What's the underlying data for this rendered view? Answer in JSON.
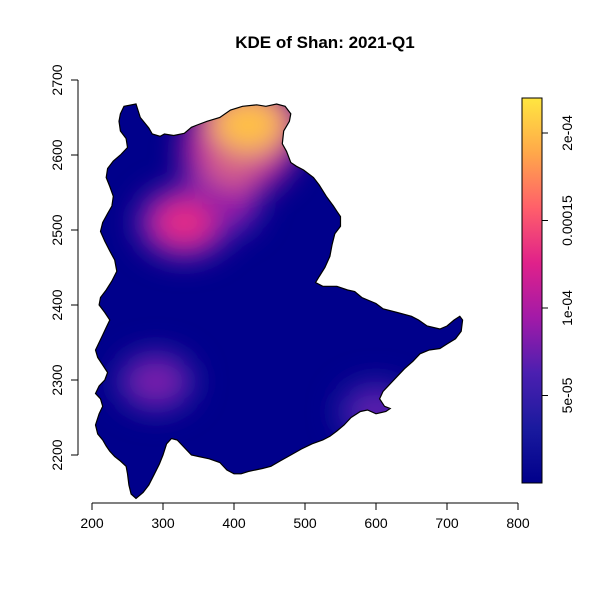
{
  "chart_data": {
    "type": "heatmap",
    "title": "KDE of Shan: 2021-Q1",
    "xlabel": "",
    "ylabel": "",
    "xlim": [
      200,
      800
    ],
    "ylim": [
      2140,
      2700
    ],
    "x_ticks": [
      "200",
      "300",
      "400",
      "500",
      "600",
      "700",
      "800"
    ],
    "y_ticks": [
      "2200",
      "2300",
      "2400",
      "2500",
      "2600",
      "2700"
    ],
    "grid": false,
    "colorbar": {
      "range": [
        0,
        0.00022
      ],
      "ticks": [
        "5e-05",
        "1e-04",
        "0.00015",
        "2e-04"
      ],
      "tick_values": [
        5e-05,
        0.0001,
        0.00015,
        0.0002
      ],
      "colors": [
        "#00008b",
        "#1a1a9e",
        "#4b1fb0",
        "#a21aa8",
        "#e0218a",
        "#ff5f6a",
        "#ffa84a",
        "#ffe640"
      ]
    },
    "hotspots": [
      {
        "x": 330,
        "y": 2510,
        "density": 0.00013
      },
      {
        "x": 375,
        "y": 2535,
        "density": 0.00011
      },
      {
        "x": 405,
        "y": 2605,
        "density": 0.00018
      },
      {
        "x": 420,
        "y": 2640,
        "density": 0.0002
      },
      {
        "x": 290,
        "y": 2298,
        "density": 8e-05
      },
      {
        "x": 600,
        "y": 2258,
        "density": 7e-05
      }
    ],
    "outline": [
      [
        245,
        2665
      ],
      [
        262,
        2668
      ],
      [
        268,
        2650
      ],
      [
        280,
        2636
      ],
      [
        285,
        2628
      ],
      [
        296,
        2625
      ],
      [
        302,
        2628
      ],
      [
        315,
        2626
      ],
      [
        330,
        2629
      ],
      [
        340,
        2637
      ],
      [
        348,
        2640
      ],
      [
        362,
        2645
      ],
      [
        380,
        2650
      ],
      [
        395,
        2660
      ],
      [
        412,
        2665
      ],
      [
        432,
        2667
      ],
      [
        445,
        2665
      ],
      [
        460,
        2668
      ],
      [
        472,
        2665
      ],
      [
        480,
        2655
      ],
      [
        478,
        2645
      ],
      [
        470,
        2632
      ],
      [
        468,
        2615
      ],
      [
        474,
        2605
      ],
      [
        480,
        2590
      ],
      [
        488,
        2585
      ],
      [
        498,
        2580
      ],
      [
        512,
        2570
      ],
      [
        520,
        2560
      ],
      [
        530,
        2545
      ],
      [
        540,
        2532
      ],
      [
        545,
        2525
      ],
      [
        550,
        2518
      ],
      [
        550,
        2505
      ],
      [
        542,
        2495
      ],
      [
        538,
        2480
      ],
      [
        535,
        2465
      ],
      [
        528,
        2450
      ],
      [
        520,
        2438
      ],
      [
        515,
        2430
      ],
      [
        525,
        2425
      ],
      [
        545,
        2425
      ],
      [
        560,
        2420
      ],
      [
        570,
        2418
      ],
      [
        580,
        2410
      ],
      [
        590,
        2406
      ],
      [
        600,
        2402
      ],
      [
        610,
        2395
      ],
      [
        630,
        2390
      ],
      [
        650,
        2385
      ],
      [
        660,
        2380
      ],
      [
        672,
        2372
      ],
      [
        690,
        2368
      ],
      [
        700,
        2372
      ],
      [
        710,
        2380
      ],
      [
        718,
        2385
      ],
      [
        722,
        2380
      ],
      [
        720,
        2365
      ],
      [
        712,
        2355
      ],
      [
        700,
        2348
      ],
      [
        690,
        2342
      ],
      [
        675,
        2340
      ],
      [
        662,
        2335
      ],
      [
        652,
        2325
      ],
      [
        640,
        2315
      ],
      [
        630,
        2305
      ],
      [
        620,
        2295
      ],
      [
        610,
        2285
      ],
      [
        605,
        2275
      ],
      [
        612,
        2265
      ],
      [
        620,
        2262
      ],
      [
        614,
        2258
      ],
      [
        600,
        2255
      ],
      [
        588,
        2260
      ],
      [
        578,
        2258
      ],
      [
        565,
        2250
      ],
      [
        555,
        2240
      ],
      [
        545,
        2232
      ],
      [
        535,
        2225
      ],
      [
        525,
        2220
      ],
      [
        510,
        2215
      ],
      [
        495,
        2208
      ],
      [
        480,
        2200
      ],
      [
        465,
        2192
      ],
      [
        452,
        2185
      ],
      [
        440,
        2182
      ],
      [
        430,
        2180
      ],
      [
        420,
        2178
      ],
      [
        410,
        2175
      ],
      [
        400,
        2175
      ],
      [
        390,
        2180
      ],
      [
        380,
        2190
      ],
      [
        365,
        2195
      ],
      [
        350,
        2198
      ],
      [
        340,
        2200
      ],
      [
        330,
        2210
      ],
      [
        320,
        2220
      ],
      [
        312,
        2222
      ],
      [
        305,
        2215
      ],
      [
        300,
        2200
      ],
      [
        295,
        2188
      ],
      [
        288,
        2175
      ],
      [
        280,
        2160
      ],
      [
        272,
        2150
      ],
      [
        262,
        2142
      ],
      [
        255,
        2148
      ],
      [
        252,
        2160
      ],
      [
        250,
        2175
      ],
      [
        248,
        2185
      ],
      [
        240,
        2192
      ],
      [
        232,
        2198
      ],
      [
        225,
        2205
      ],
      [
        220,
        2212
      ],
      [
        215,
        2220
      ],
      [
        208,
        2228
      ],
      [
        205,
        2240
      ],
      [
        210,
        2255
      ],
      [
        215,
        2265
      ],
      [
        212,
        2275
      ],
      [
        205,
        2282
      ],
      [
        210,
        2292
      ],
      [
        218,
        2300
      ],
      [
        222,
        2310
      ],
      [
        215,
        2320
      ],
      [
        208,
        2330
      ],
      [
        205,
        2340
      ],
      [
        210,
        2350
      ],
      [
        215,
        2360
      ],
      [
        220,
        2370
      ],
      [
        225,
        2380
      ],
      [
        218,
        2390
      ],
      [
        210,
        2400
      ],
      [
        212,
        2410
      ],
      [
        220,
        2420
      ],
      [
        228,
        2432
      ],
      [
        235,
        2445
      ],
      [
        232,
        2460
      ],
      [
        225,
        2472
      ],
      [
        218,
        2485
      ],
      [
        212,
        2498
      ],
      [
        215,
        2510
      ],
      [
        222,
        2522
      ],
      [
        228,
        2532
      ],
      [
        230,
        2545
      ],
      [
        225,
        2558
      ],
      [
        220,
        2570
      ],
      [
        222,
        2582
      ],
      [
        230,
        2592
      ],
      [
        240,
        2600
      ],
      [
        250,
        2610
      ],
      [
        248,
        2622
      ],
      [
        240,
        2632
      ],
      [
        238,
        2645
      ],
      [
        240,
        2655
      ],
      [
        245,
        2665
      ]
    ]
  }
}
